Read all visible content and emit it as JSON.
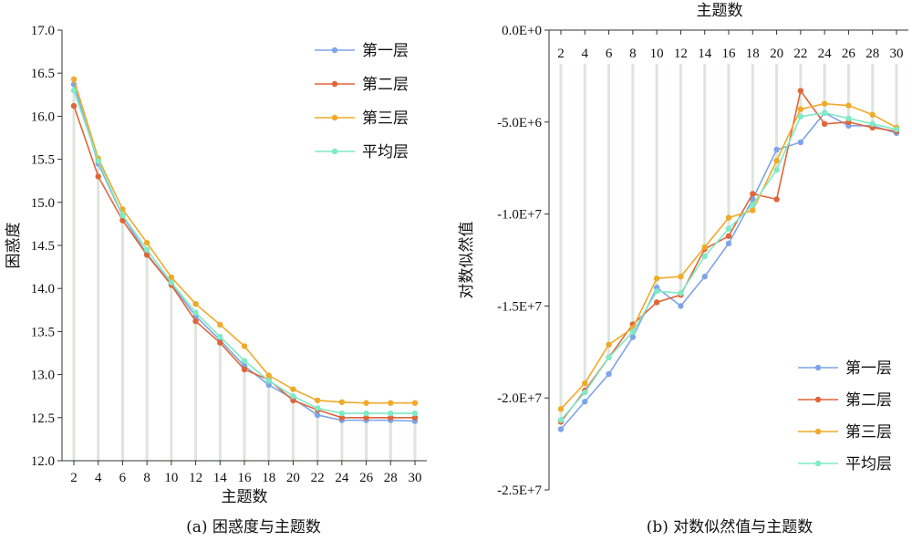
{
  "chart_data": [
    {
      "type": "line",
      "caption": "(a) 困惑度与主题数",
      "xlabel": "主题数",
      "ylabel": "困惑度",
      "x": [
        2,
        4,
        6,
        8,
        10,
        12,
        14,
        16,
        18,
        20,
        22,
        24,
        26,
        28,
        30
      ],
      "ylim": [
        12.0,
        17.0
      ],
      "yticks": [
        "12.0",
        "12.5",
        "13.0",
        "13.5",
        "14.0",
        "14.5",
        "15.0",
        "15.5",
        "16.0",
        "16.5",
        "17.0"
      ],
      "legend_position": "top-right",
      "series": [
        {
          "name": "第一层",
          "color": "#7fa4e6",
          "values": [
            16.37,
            15.45,
            14.84,
            14.4,
            14.05,
            13.68,
            13.4,
            13.1,
            12.88,
            12.72,
            12.53,
            12.47,
            12.47,
            12.47,
            12.46
          ]
        },
        {
          "name": "第二层",
          "color": "#e0653a",
          "values": [
            16.12,
            15.3,
            14.79,
            14.39,
            14.04,
            13.62,
            13.37,
            13.06,
            12.94,
            12.7,
            12.59,
            12.5,
            12.5,
            12.5,
            12.5
          ]
        },
        {
          "name": "第三层",
          "color": "#f0a92a",
          "values": [
            16.43,
            15.51,
            14.92,
            14.53,
            14.13,
            13.82,
            13.58,
            13.33,
            12.99,
            12.83,
            12.7,
            12.68,
            12.67,
            12.67,
            12.67
          ]
        },
        {
          "name": "平均层",
          "color": "#7eeac6",
          "values": [
            16.3,
            15.48,
            14.85,
            14.45,
            14.07,
            13.72,
            13.44,
            13.16,
            12.93,
            12.75,
            12.61,
            12.55,
            12.55,
            12.55,
            12.55
          ]
        }
      ]
    },
    {
      "type": "line",
      "caption": "(b) 对数似然值与主题数",
      "xlabel": "主题数",
      "ylabel": "对数似然值",
      "x": [
        2,
        4,
        6,
        8,
        10,
        12,
        14,
        16,
        18,
        20,
        22,
        24,
        26,
        28,
        30
      ],
      "ylim": [
        -25000000,
        0
      ],
      "yticks": [
        "0.0E+0",
        "-5.0E+6",
        "-1.0E+7",
        "-1.5E+7",
        "-2.0E+7",
        "-2.5E+7"
      ],
      "legend_position": "bottom-right",
      "series": [
        {
          "name": "第一层",
          "color": "#7fa4e6",
          "values": [
            -21700000,
            -20200000,
            -18700000,
            -16700000,
            -14000000,
            -15000000,
            -13400000,
            -11600000,
            -9200000,
            -6500000,
            -6100000,
            -4500000,
            -5200000,
            -5200000,
            -5600000
          ]
        },
        {
          "name": "第二层",
          "color": "#e0653a",
          "values": [
            -21300000,
            -19600000,
            -17800000,
            -16000000,
            -14800000,
            -14400000,
            -11900000,
            -11200000,
            -8900000,
            -9200000,
            -3300000,
            -5100000,
            -5000000,
            -5300000,
            -5500000
          ]
        },
        {
          "name": "第三层",
          "color": "#f0a92a",
          "values": [
            -20600000,
            -19200000,
            -17100000,
            -16200000,
            -13500000,
            -13400000,
            -11800000,
            -10200000,
            -9800000,
            -7100000,
            -4300000,
            -4000000,
            -4100000,
            -4600000,
            -5300000
          ]
        },
        {
          "name": "平均层",
          "color": "#7eeac6",
          "values": [
            -21200000,
            -19700000,
            -17800000,
            -16400000,
            -14200000,
            -14300000,
            -12300000,
            -10800000,
            -9500000,
            -7600000,
            -4700000,
            -4500000,
            -4800000,
            -5100000,
            -5400000
          ]
        }
      ]
    }
  ]
}
